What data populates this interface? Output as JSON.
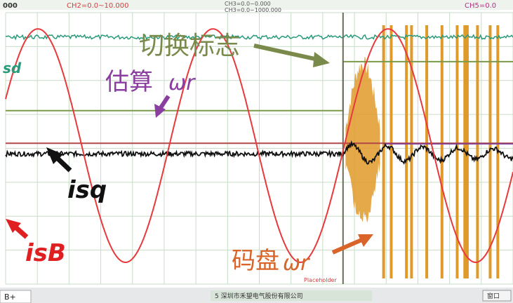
{
  "header": {
    "left_code": "000",
    "ch2": "CH2=0.0~10.000",
    "ch3a": "CH3=0.0~0.000",
    "ch3b": "CH3=0.0~1000.000",
    "ch5": "CH5=0.0"
  },
  "annotations": {
    "switch_flag": "切换标志",
    "estimated_label": "估算",
    "estimated_omega": "ωr",
    "isd": "sd",
    "isq": "isq",
    "isb": "isB",
    "encoder_label": "码盘",
    "encoder_omega": "ωr",
    "bottom_small": "Placeholder"
  },
  "statusbar": {
    "left_tab": "B+",
    "company": "5 深圳市禾望电气股份有限公司",
    "right_box": "窗口"
  },
  "colors": {
    "background": "#ffffff",
    "grid": "#c8dcc8",
    "isB_trace": "#e8393c",
    "isq_trace": "#111111",
    "omega_est_trace": "#b04848",
    "isd_trace": "#2a9a7a",
    "switch_flag_trace": "#7a9a4a",
    "encoder_trace": "#e09a2a",
    "annotation_purple": "#8a3fa0",
    "annotation_red": "#e02020",
    "annotation_orange": "#d8642a",
    "annotation_green": "#7a8a4a"
  },
  "chart_data": {
    "type": "line",
    "title": "",
    "xlabel": "",
    "ylabel": "",
    "switch_time": 0.665,
    "series": [
      {
        "name": "isB",
        "kind": "sine",
        "amplitude": 1.0,
        "period": 0.345,
        "phase": 0.15
      },
      {
        "name": "isq",
        "kind": "noise_level",
        "level": -0.07,
        "post_switch_level": -0.07
      },
      {
        "name": "ωr估算",
        "kind": "constant",
        "level": 0.02
      },
      {
        "name": "isd",
        "kind": "noise_level",
        "level": 0.93
      },
      {
        "name": "切换标志",
        "kind": "step",
        "before": 0.3,
        "after": 0.72
      },
      {
        "name": "ωr码盘",
        "kind": "pulses",
        "positions": [
          0.745,
          0.76,
          0.79,
          0.8,
          0.83,
          0.86,
          0.89,
          0.905,
          0.91,
          0.93,
          0.955,
          0.97
        ]
      }
    ]
  }
}
